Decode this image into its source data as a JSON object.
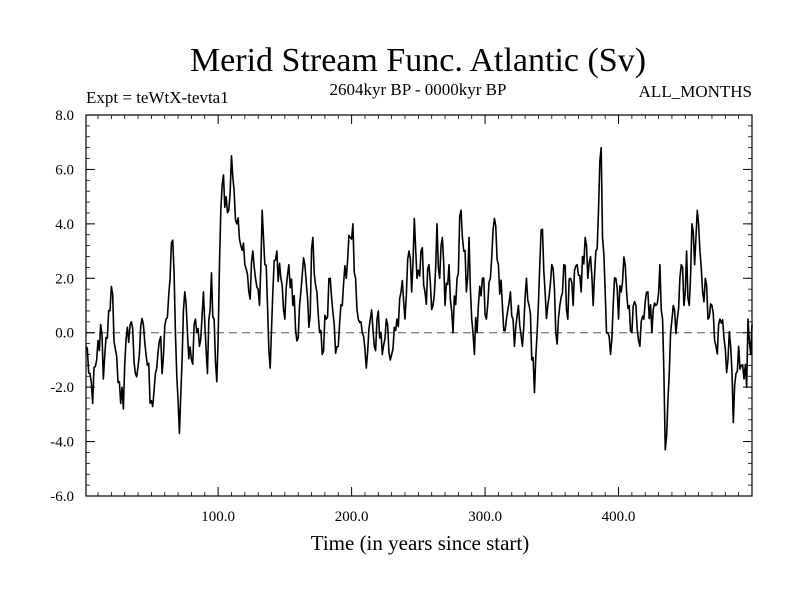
{
  "chart_data": {
    "type": "line",
    "title": "Merid Stream Func. Atlantic (Sv)",
    "subtitle_left": "Expt = teWtX-tevta1",
    "subtitle_center": "2604kyr BP - 0000kyr BP",
    "subtitle_right": "ALL_MONTHS",
    "xlabel": "Time (in years since start)",
    "ylabel": "",
    "xlim": [
      1,
      500
    ],
    "ylim": [
      -6,
      8
    ],
    "xticks": [
      100,
      200,
      300,
      400
    ],
    "xtick_labels": [
      "100.0",
      "200.0",
      "300.0",
      "400.0"
    ],
    "yticks": [
      -6,
      -4,
      -2,
      0,
      2,
      4,
      6,
      8
    ],
    "ytick_labels": [
      "-6.0",
      "-4.0",
      "-2.0",
      "0.0",
      "2.0",
      "4.0",
      "6.0",
      "8.0"
    ],
    "reference_line": {
      "y": 0,
      "style": "dashed",
      "color": "#555555"
    },
    "series": [
      {
        "name": "Merid Stream Func. Atlantic",
        "color": "#000000",
        "x_start": 1,
        "x_step": 1,
        "keypoints": [
          [
            1,
            -0.5
          ],
          [
            4,
            -1.5
          ],
          [
            6,
            -2.6
          ],
          [
            9,
            -1.0
          ],
          [
            12,
            0.3
          ],
          [
            14,
            -1.7
          ],
          [
            17,
            -0.2
          ],
          [
            20,
            1.7
          ],
          [
            23,
            -0.6
          ],
          [
            26,
            -1.8
          ],
          [
            29,
            -2.8
          ],
          [
            32,
            0.2
          ],
          [
            35,
            0.4
          ],
          [
            38,
            -1.5
          ],
          [
            41,
            -0.8
          ],
          [
            44,
            0.3
          ],
          [
            47,
            -1.2
          ],
          [
            50,
            -2.5
          ],
          [
            53,
            -1.5
          ],
          [
            56,
            -0.3
          ],
          [
            58,
            -1.5
          ],
          [
            61,
            0.5
          ],
          [
            64,
            2.0
          ],
          [
            66,
            3.4
          ],
          [
            68,
            0.0
          ],
          [
            70,
            -2.5
          ],
          [
            71,
            -3.7
          ],
          [
            73,
            -1.0
          ],
          [
            75,
            1.5
          ],
          [
            77,
            0.0
          ],
          [
            80,
            -1.0
          ],
          [
            83,
            0.5
          ],
          [
            86,
            -0.5
          ],
          [
            89,
            1.5
          ],
          [
            92,
            -1.5
          ],
          [
            95,
            2.2
          ],
          [
            97,
            0.5
          ],
          [
            99,
            -1.8
          ],
          [
            101,
            2.5
          ],
          [
            102,
            4.5
          ],
          [
            104,
            5.8
          ],
          [
            106,
            5.0
          ],
          [
            108,
            4.5
          ],
          [
            110,
            6.5
          ],
          [
            112,
            5.2
          ],
          [
            114,
            4.0
          ],
          [
            117,
            3.2
          ],
          [
            120,
            2.5
          ],
          [
            123,
            1.5
          ],
          [
            126,
            3.0
          ],
          [
            128,
            2.0
          ],
          [
            131,
            1.0
          ],
          [
            133,
            4.5
          ],
          [
            135,
            2.5
          ],
          [
            137,
            1.0
          ],
          [
            139,
            -1.3
          ],
          [
            141,
            1.5
          ],
          [
            144,
            3.0
          ],
          [
            147,
            2.0
          ],
          [
            150,
            0.5
          ],
          [
            153,
            2.5
          ],
          [
            156,
            1.0
          ],
          [
            159,
            -0.3
          ],
          [
            162,
            1.5
          ],
          [
            165,
            2.5
          ],
          [
            168,
            0.2
          ],
          [
            171,
            3.5
          ],
          [
            174,
            1.5
          ],
          [
            176,
            0.0
          ],
          [
            178,
            -0.8
          ],
          [
            181,
            0.5
          ],
          [
            184,
            2.0
          ],
          [
            187,
            0.3
          ],
          [
            190,
            -0.5
          ],
          [
            193,
            1.0
          ],
          [
            196,
            2.0
          ],
          [
            199,
            3.5
          ],
          [
            201,
            4.0
          ],
          [
            203,
            2.0
          ],
          [
            205,
            0.5
          ],
          [
            208,
            0.0
          ],
          [
            211,
            -1.3
          ],
          [
            214,
            0.5
          ],
          [
            217,
            -0.5
          ],
          [
            220,
            0.8
          ],
          [
            223,
            -0.8
          ],
          [
            226,
            0.5
          ],
          [
            229,
            -1.0
          ],
          [
            232,
            0.2
          ],
          [
            234,
            0.5
          ],
          [
            237,
            1.5
          ],
          [
            240,
            0.5
          ],
          [
            243,
            3.0
          ],
          [
            245,
            1.5
          ],
          [
            247,
            4.2
          ],
          [
            249,
            2.0
          ],
          [
            252,
            3.0
          ],
          [
            255,
            1.5
          ],
          [
            258,
            2.5
          ],
          [
            261,
            1.0
          ],
          [
            264,
            4.0
          ],
          [
            266,
            2.0
          ],
          [
            268,
            3.5
          ],
          [
            270,
            1.0
          ],
          [
            273,
            2.5
          ],
          [
            276,
            0.0
          ],
          [
            279,
            2.0
          ],
          [
            282,
            4.5
          ],
          [
            284,
            3.0
          ],
          [
            286,
            1.5
          ],
          [
            288,
            3.5
          ],
          [
            290,
            0.5
          ],
          [
            292,
            -0.8
          ],
          [
            295,
            1.0
          ],
          [
            298,
            2.0
          ],
          [
            301,
            0.5
          ],
          [
            304,
            2.0
          ],
          [
            307,
            4.2
          ],
          [
            310,
            2.5
          ],
          [
            313,
            1.0
          ],
          [
            316,
            0.5
          ],
          [
            319,
            1.5
          ],
          [
            322,
            -0.5
          ],
          [
            325,
            1.0
          ],
          [
            328,
            -0.5
          ],
          [
            331,
            2.0
          ],
          [
            333,
            1.0
          ],
          [
            335,
            -1.0
          ],
          [
            337,
            -2.2
          ],
          [
            339,
            0.0
          ],
          [
            341,
            2.5
          ],
          [
            343,
            3.8
          ],
          [
            345,
            1.5
          ],
          [
            347,
            1.0
          ],
          [
            350,
            2.5
          ],
          [
            353,
            0.0
          ],
          [
            356,
            1.0
          ],
          [
            359,
            2.5
          ],
          [
            362,
            0.5
          ],
          [
            364,
            2.0
          ],
          [
            366,
            1.0
          ],
          [
            369,
            2.5
          ],
          [
            372,
            1.5
          ],
          [
            375,
            3.5
          ],
          [
            377,
            2.0
          ],
          [
            379,
            2.8
          ],
          [
            381,
            1.0
          ],
          [
            383,
            3.0
          ],
          [
            385,
            4.5
          ],
          [
            387,
            6.8
          ],
          [
            388,
            3.5
          ],
          [
            390,
            1.5
          ],
          [
            392,
            0.0
          ],
          [
            394,
            -0.8
          ],
          [
            396,
            1.0
          ],
          [
            398,
            2.0
          ],
          [
            400,
            0.5
          ],
          [
            402,
            1.5
          ],
          [
            405,
            2.5
          ],
          [
            408,
            1.0
          ],
          [
            410,
            0.0
          ],
          [
            413,
            1.0
          ],
          [
            416,
            -0.5
          ],
          [
            419,
            0.5
          ],
          [
            422,
            1.5
          ],
          [
            425,
            0.0
          ],
          [
            428,
            1.0
          ],
          [
            431,
            2.5
          ],
          [
            433,
            0.5
          ],
          [
            434,
            -1.5
          ],
          [
            435,
            -4.3
          ],
          [
            437,
            -2.5
          ],
          [
            439,
            0.0
          ],
          [
            441,
            1.0
          ],
          [
            444,
            0.5
          ],
          [
            447,
            2.5
          ],
          [
            449,
            1.0
          ],
          [
            451,
            3.0
          ],
          [
            453,
            1.0
          ],
          [
            455,
            4.0
          ],
          [
            457,
            2.5
          ],
          [
            459,
            4.5
          ],
          [
            461,
            3.0
          ],
          [
            463,
            1.5
          ],
          [
            465,
            2.0
          ],
          [
            467,
            0.5
          ],
          [
            470,
            1.0
          ],
          [
            473,
            -0.5
          ],
          [
            476,
            0.5
          ],
          [
            479,
            -0.2
          ],
          [
            482,
            -1.0
          ],
          [
            484,
            -0.5
          ],
          [
            486,
            -3.3
          ],
          [
            488,
            -1.5
          ],
          [
            490,
            -0.5
          ],
          [
            492,
            -1.2
          ],
          [
            494,
            -1.7
          ],
          [
            496,
            -2.0
          ],
          [
            497,
            0.5
          ],
          [
            499,
            -0.8
          ],
          [
            500,
            0.3
          ]
        ]
      }
    ]
  }
}
